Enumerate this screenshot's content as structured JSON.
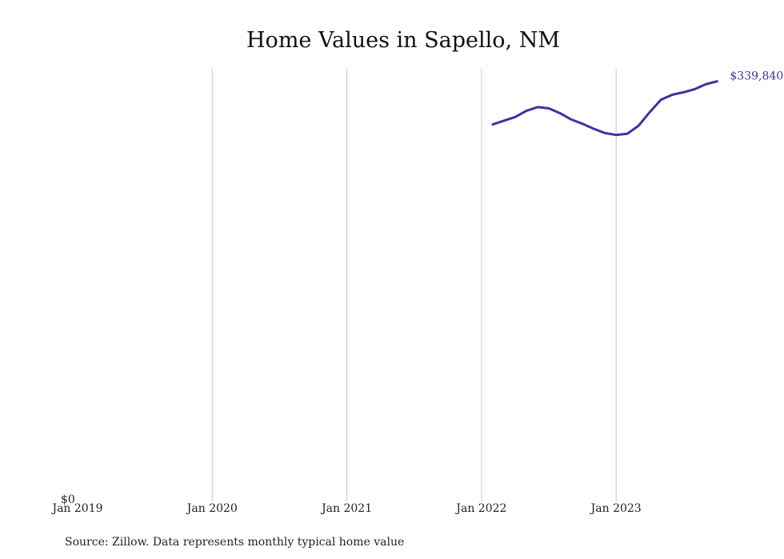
{
  "chart_data": {
    "type": "line",
    "title": "Home Values in Sapello, NM",
    "xlabel": "",
    "ylabel": "",
    "x_ticks": [
      "Jan 2019",
      "Jan 2020",
      "Jan 2021",
      "Jan 2022",
      "Jan 2023"
    ],
    "y_ticks": [
      "$0"
    ],
    "xlim": [
      "2019-01",
      "2023-11"
    ],
    "ylim": [
      0,
      350000
    ],
    "grid": "vertical",
    "legend": "none",
    "colors": {
      "line": "#3b35a0",
      "grid": "#c8c8c8",
      "text": "#222222"
    },
    "series": [
      {
        "x": [
          "2022-02",
          "2022-03",
          "2022-04",
          "2022-05",
          "2022-06",
          "2022-07",
          "2022-08",
          "2022-09",
          "2022-10",
          "2022-11",
          "2022-12",
          "2023-01",
          "2023-02",
          "2023-03",
          "2023-04",
          "2023-05",
          "2023-06",
          "2023-07",
          "2023-08",
          "2023-09",
          "2023-10"
        ],
        "values": [
          305000,
          308000,
          311000,
          316000,
          319000,
          318000,
          314000,
          309000,
          305500,
          301500,
          298000,
          296500,
          297500,
          304000,
          315000,
          325000,
          329000,
          331000,
          333500,
          337500,
          339840
        ]
      }
    ],
    "end_label": "$339,840",
    "source": "Source: Zillow. Data represents monthly typical home value"
  }
}
